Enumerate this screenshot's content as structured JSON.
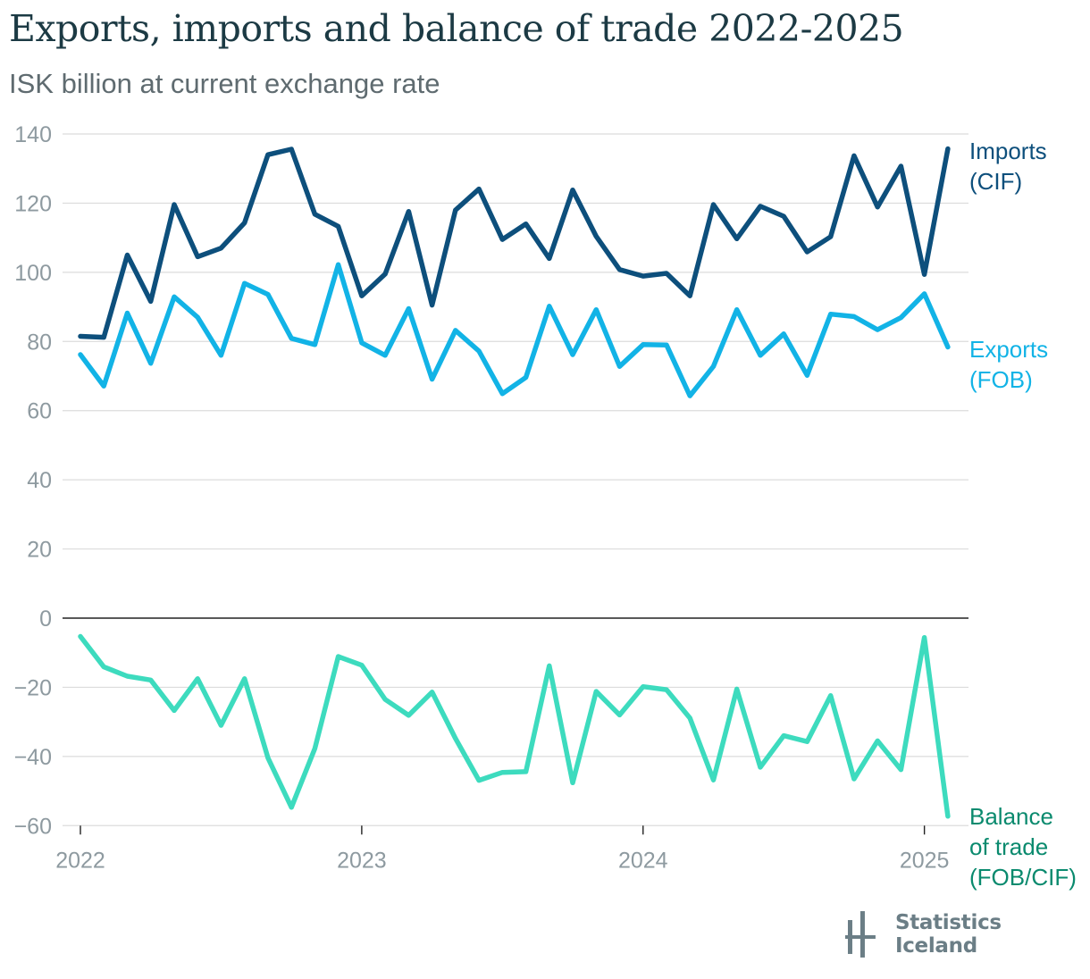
{
  "title": "Exports, imports and balance of trade 2022-2025",
  "subtitle": "ISK billion at current exchange rate",
  "brand": "Statistics Iceland",
  "colors": {
    "imports": "#0d4f7c",
    "exports": "#12b3e6",
    "balance": "#3ddbbe",
    "balance_label": "#0a8a6e",
    "grid": "#dcdcdc",
    "zero_line": "#222222",
    "tick_text": "#8e9aa0"
  },
  "chart_data": {
    "type": "line",
    "x_start": "2022-01",
    "x_frequency": "monthly",
    "xticks": [
      "2022",
      "2023",
      "2024",
      "2025"
    ],
    "yticks": [
      "140",
      "120",
      "100",
      "80",
      "60",
      "40",
      "20",
      "0",
      "−20",
      "−40",
      "−60"
    ],
    "ylim": [
      -60,
      140
    ],
    "grid": true,
    "series": [
      {
        "key": "imports",
        "name": [
          "Imports",
          "(CIF)"
        ],
        "values": [
          81.5,
          81.2,
          105.0,
          91.6,
          119.6,
          104.5,
          107.0,
          114.3,
          134.0,
          135.6,
          116.8,
          113.3,
          93.2,
          99.5,
          117.6,
          90.5,
          118.0,
          124.1,
          109.5,
          114.0,
          104.0,
          123.8,
          110.4,
          100.8,
          98.9,
          99.7,
          93.2,
          119.6,
          109.7,
          119.1,
          116.2,
          105.9,
          110.3,
          133.7,
          118.9,
          130.7,
          99.4,
          135.7
        ]
      },
      {
        "key": "exports",
        "name": [
          "Exports",
          "(FOB)"
        ],
        "values": [
          76.2,
          67.1,
          88.2,
          73.7,
          92.9,
          87.0,
          76.0,
          96.8,
          93.6,
          80.9,
          79.1,
          102.2,
          79.6,
          76.0,
          89.5,
          69.1,
          83.2,
          77.2,
          64.9,
          69.6,
          90.2,
          76.2,
          89.2,
          72.8,
          79.1,
          79.0,
          64.3,
          72.8,
          89.2,
          76.0,
          82.2,
          70.2,
          87.9,
          87.2,
          83.4,
          86.9,
          93.8,
          78.4
        ]
      },
      {
        "key": "balance",
        "name": [
          "Balance",
          "of trade",
          "(FOB/CIF)"
        ],
        "values": [
          -5.3,
          -14.1,
          -16.8,
          -17.9,
          -26.7,
          -17.5,
          -31.0,
          -17.5,
          -40.4,
          -54.7,
          -37.7,
          -11.1,
          -13.6,
          -23.5,
          -28.1,
          -21.4,
          -34.8,
          -46.9,
          -44.6,
          -44.4,
          -13.8,
          -47.6,
          -21.2,
          -28.0,
          -19.8,
          -20.7,
          -28.9,
          -46.8,
          -20.5,
          -43.1,
          -34.0,
          -35.7,
          -22.4,
          -46.5,
          -35.5,
          -43.8,
          -5.6,
          -57.3
        ]
      }
    ]
  }
}
